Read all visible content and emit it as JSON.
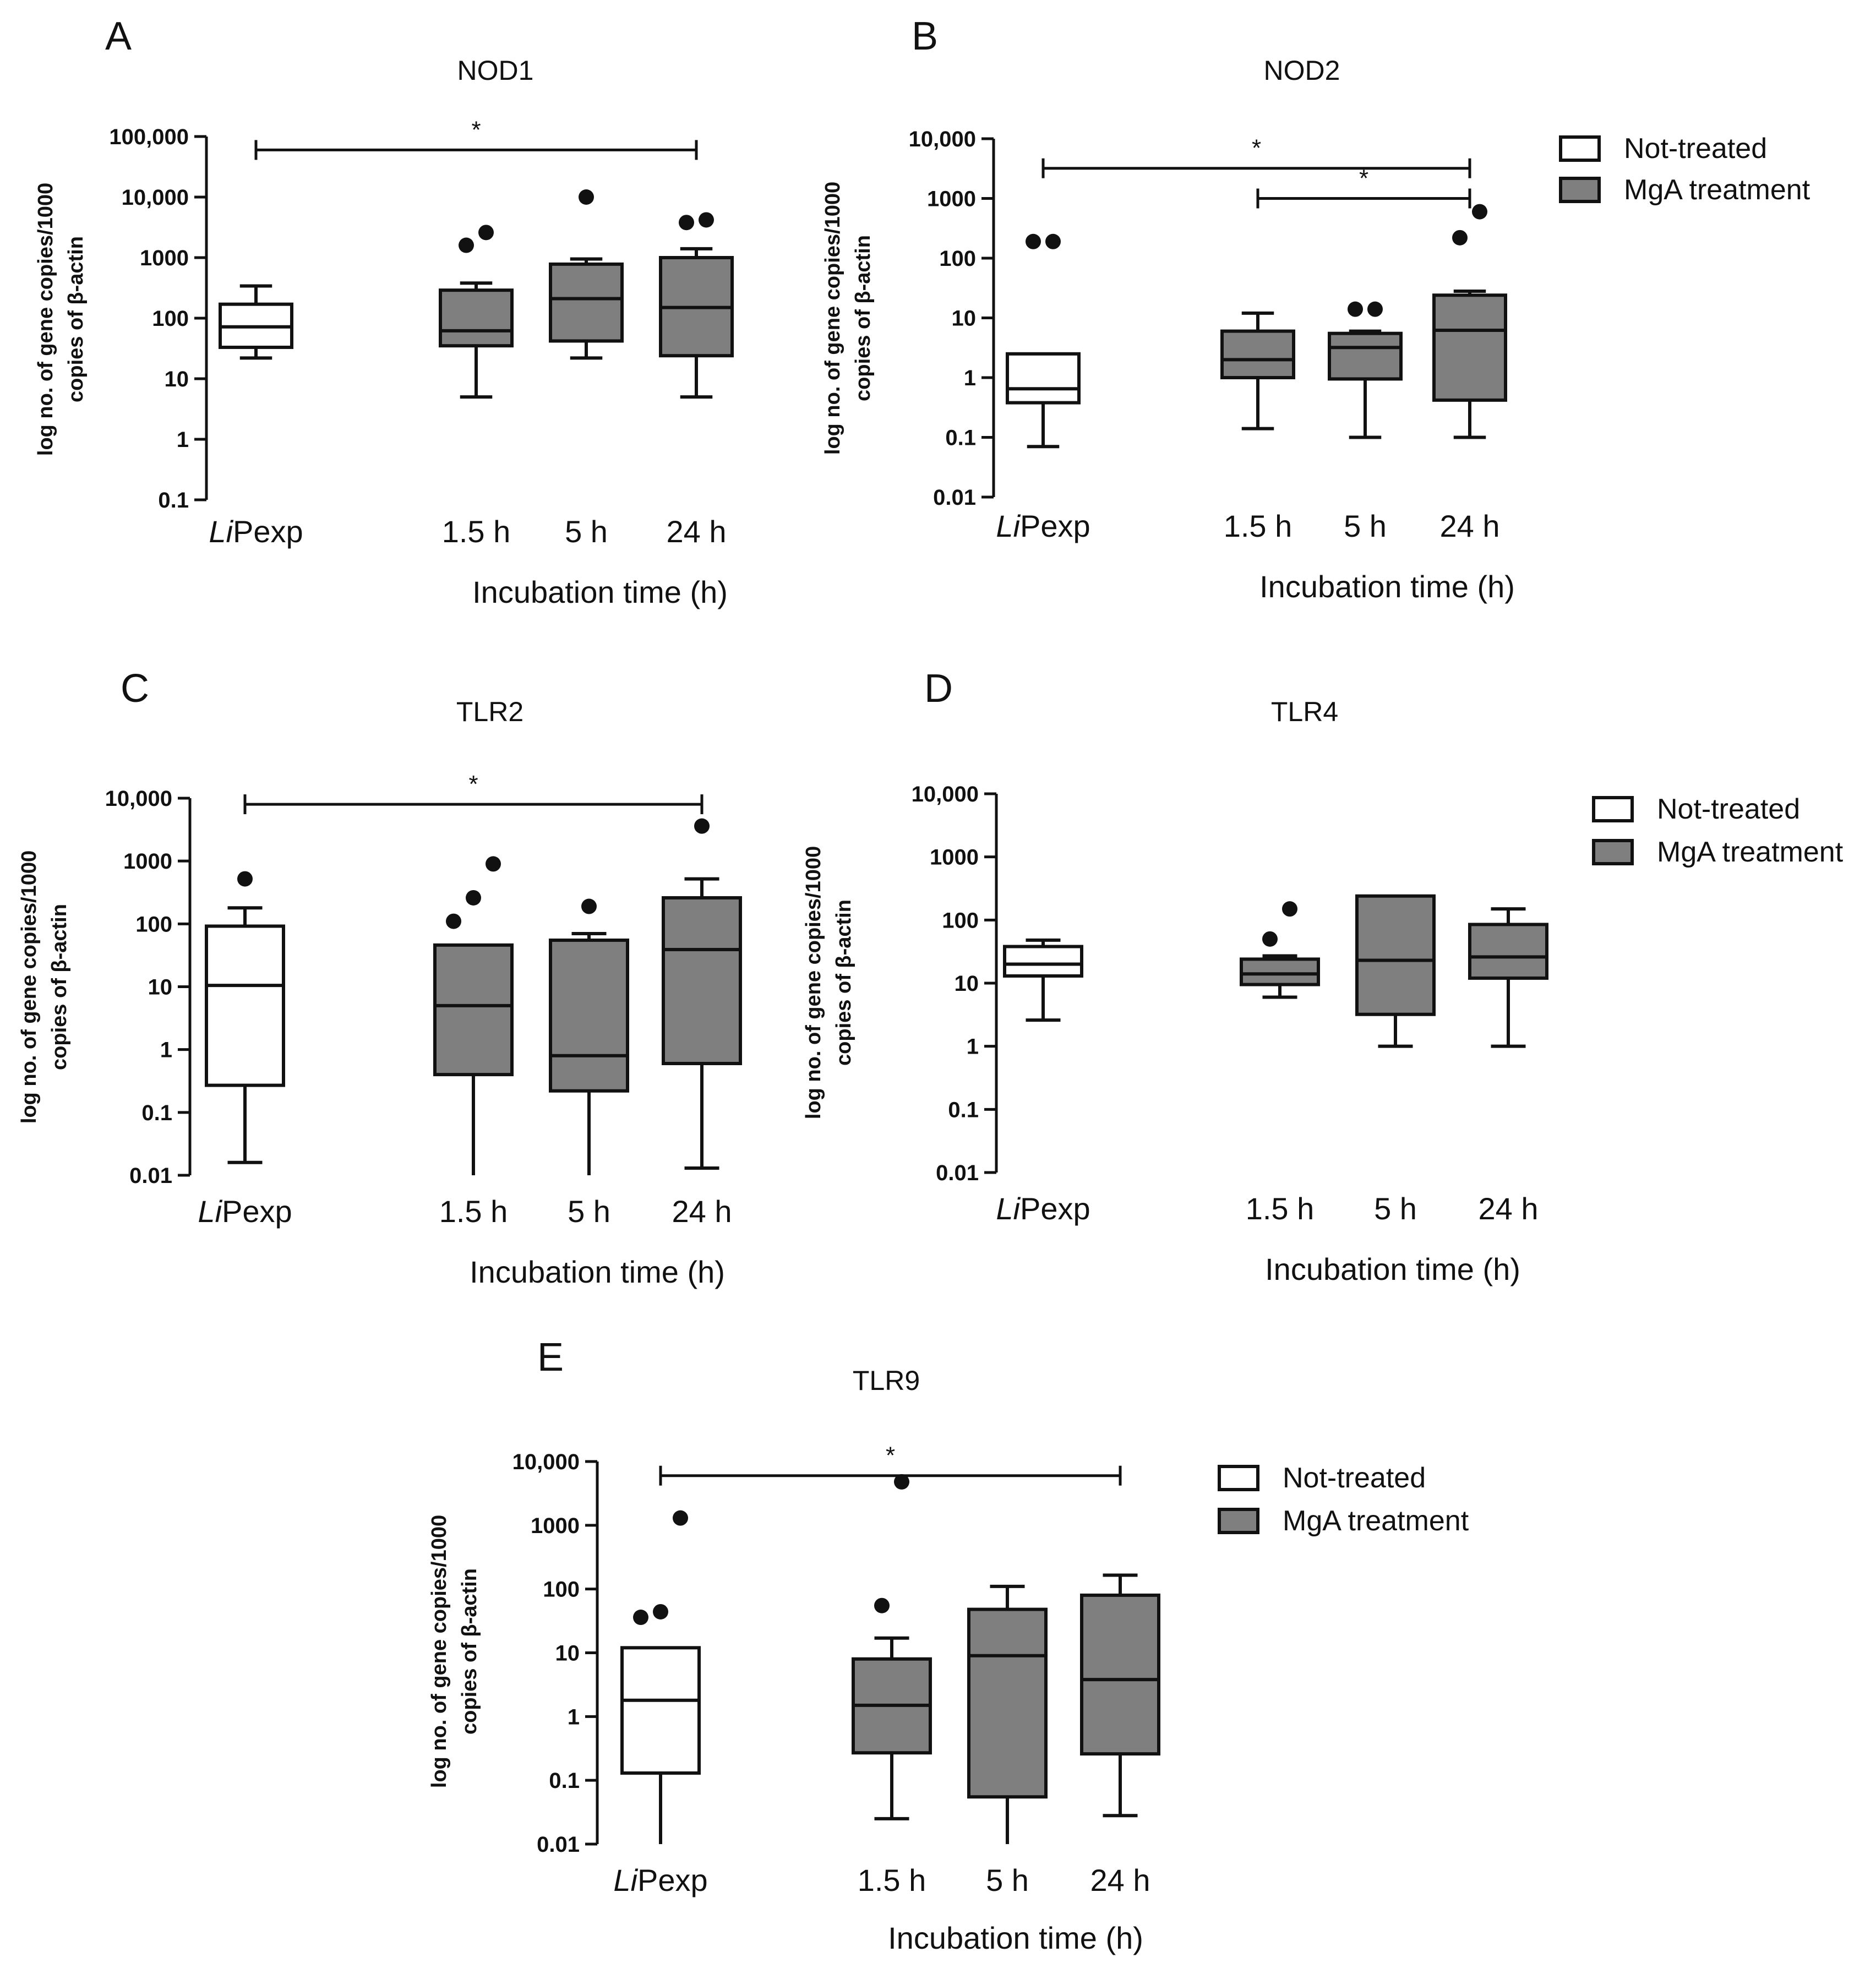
{
  "colors": {
    "not_treated": "#ffffff",
    "mga_treatment": "#7f7f7f",
    "line": "#111111"
  },
  "chart_data": [
    {
      "panel": "A",
      "title": "NOD1",
      "type": "box",
      "scale": "log",
      "ylabel_line1": "log no. of gene copies/1000",
      "ylabel_line2": "copies of β-actin",
      "xlabel": "Incubation time (h)",
      "categories": [
        {
          "label_italic": "Li",
          "label": "Pexp",
          "group": "not_treated"
        },
        {
          "label_italic": "",
          "label": "1.5 h",
          "group": "mga_treatment"
        },
        {
          "label_italic": "",
          "label": "5 h",
          "group": "mga_treatment"
        },
        {
          "label_italic": "",
          "label": "24 h",
          "group": "mga_treatment"
        }
      ],
      "ylim": [
        0.1,
        100000
      ],
      "ticks": [
        {
          "value": 0.1,
          "label": "0.1"
        },
        {
          "value": 1,
          "label": "1"
        },
        {
          "value": 10,
          "label": "10"
        },
        {
          "value": 100,
          "label": "100"
        },
        {
          "value": 1000,
          "label": "1000"
        },
        {
          "value": 10000,
          "label": "10,000"
        },
        {
          "value": 100000,
          "label": "100,000"
        }
      ],
      "boxes": [
        {
          "min": 22,
          "q1": 33,
          "median": 72,
          "q3": 170,
          "max": 340,
          "outliers": []
        },
        {
          "min": 5,
          "q1": 35,
          "median": 62,
          "q3": 290,
          "max": 380,
          "outliers": [
            1600,
            2600
          ]
        },
        {
          "min": 22,
          "q1": 42,
          "median": 210,
          "q3": 780,
          "max": 950,
          "outliers": [
            10000
          ]
        },
        {
          "min": 5,
          "q1": 24,
          "median": 150,
          "q3": 1000,
          "max": 1400,
          "outliers": [
            3800,
            4200
          ]
        }
      ],
      "significance": [
        {
          "from": 0,
          "to": 3,
          "value": 60000,
          "label": "*"
        }
      ]
    },
    {
      "panel": "B",
      "title": "NOD2",
      "type": "box",
      "scale": "log",
      "ylabel_line1": "log no. of gene copies/1000",
      "ylabel_line2": "copies of β-actin",
      "xlabel": "Incubation time (h)",
      "categories": [
        {
          "label_italic": "Li",
          "label": "Pexp",
          "group": "not_treated"
        },
        {
          "label_italic": "",
          "label": "1.5 h",
          "group": "mga_treatment"
        },
        {
          "label_italic": "",
          "label": "5 h",
          "group": "mga_treatment"
        },
        {
          "label_italic": "",
          "label": "24 h",
          "group": "mga_treatment"
        }
      ],
      "ylim": [
        0.01,
        10000
      ],
      "ticks": [
        {
          "value": 0.01,
          "label": "0.01"
        },
        {
          "value": 0.1,
          "label": "0.1"
        },
        {
          "value": 1,
          "label": "1"
        },
        {
          "value": 10,
          "label": "10"
        },
        {
          "value": 100,
          "label": "100"
        },
        {
          "value": 1000,
          "label": "1000"
        },
        {
          "value": 10000,
          "label": "10,000"
        }
      ],
      "boxes": [
        {
          "min": 0.07,
          "q1": 0.38,
          "median": 0.65,
          "q3": 2.5,
          "max": 2.5,
          "outliers": [
            190,
            190
          ]
        },
        {
          "min": 0.14,
          "q1": 1.0,
          "median": 2.0,
          "q3": 6.0,
          "max": 12,
          "outliers": []
        },
        {
          "min": 0.1,
          "q1": 0.95,
          "median": 3.2,
          "q3": 5.5,
          "max": 6.0,
          "outliers": [
            14,
            14
          ]
        },
        {
          "min": 0.1,
          "q1": 0.42,
          "median": 6.2,
          "q3": 24,
          "max": 28,
          "outliers": [
            220,
            600
          ]
        }
      ],
      "significance": [
        {
          "from": 0,
          "to": 3,
          "value": 3200,
          "label": "*"
        },
        {
          "from": 1,
          "to": 3,
          "value": 1000,
          "label": "*"
        }
      ]
    },
    {
      "panel": "C",
      "title": "TLR2",
      "type": "box",
      "scale": "log",
      "ylabel_line1": "log no. of gene copies/1000",
      "ylabel_line2": "copies of β-actin",
      "xlabel": "Incubation time (h)",
      "categories": [
        {
          "label_italic": "Li",
          "label": "Pexp",
          "group": "not_treated"
        },
        {
          "label_italic": "",
          "label": "1.5 h",
          "group": "mga_treatment"
        },
        {
          "label_italic": "",
          "label": "5 h",
          "group": "mga_treatment"
        },
        {
          "label_italic": "",
          "label": "24 h",
          "group": "mga_treatment"
        }
      ],
      "ylim": [
        0.01,
        10000
      ],
      "ticks": [
        {
          "value": 0.01,
          "label": "0.01"
        },
        {
          "value": 0.1,
          "label": "0.1"
        },
        {
          "value": 1,
          "label": "1"
        },
        {
          "value": 10,
          "label": "10"
        },
        {
          "value": 100,
          "label": "100"
        },
        {
          "value": 1000,
          "label": "1000"
        },
        {
          "value": 10000,
          "label": "10,000"
        }
      ],
      "boxes": [
        {
          "min": 0.016,
          "q1": 0.27,
          "median": 10.5,
          "q3": 92,
          "max": 180,
          "outliers": [
            520
          ]
        },
        {
          "min": 0.01,
          "q1": 0.4,
          "median": 5.0,
          "q3": 46,
          "max": 46,
          "outliers": [
            110,
            260,
            900
          ]
        },
        {
          "min": 0.01,
          "q1": 0.22,
          "median": 0.8,
          "q3": 55,
          "max": 70,
          "outliers": [
            190
          ]
        },
        {
          "min": 0.013,
          "q1": 0.6,
          "median": 39,
          "q3": 260,
          "max": 520,
          "outliers": [
            3600
          ]
        }
      ],
      "significance": [
        {
          "from": 0,
          "to": 3,
          "value": 8000,
          "label": "*"
        }
      ]
    },
    {
      "panel": "D",
      "title": "TLR4",
      "type": "box",
      "scale": "log",
      "ylabel_line1": "log no. of gene copies/1000",
      "ylabel_line2": "copies of β-actin",
      "xlabel": "Incubation time (h)",
      "categories": [
        {
          "label_italic": "Li",
          "label": "Pexp",
          "group": "not_treated"
        },
        {
          "label_italic": "",
          "label": "1.5 h",
          "group": "mga_treatment"
        },
        {
          "label_italic": "",
          "label": "5 h",
          "group": "mga_treatment"
        },
        {
          "label_italic": "",
          "label": "24 h",
          "group": "mga_treatment"
        }
      ],
      "ylim": [
        0.01,
        10000
      ],
      "ticks": [
        {
          "value": 0.01,
          "label": "0.01"
        },
        {
          "value": 0.1,
          "label": "0.1"
        },
        {
          "value": 1,
          "label": "1"
        },
        {
          "value": 10,
          "label": "10"
        },
        {
          "value": 100,
          "label": "100"
        },
        {
          "value": 1000,
          "label": "1000"
        },
        {
          "value": 10000,
          "label": "10,000"
        }
      ],
      "boxes": [
        {
          "min": 2.6,
          "q1": 13,
          "median": 20,
          "q3": 38,
          "max": 48,
          "outliers": []
        },
        {
          "min": 6.0,
          "q1": 9.5,
          "median": 14,
          "q3": 24,
          "max": 27,
          "outliers": [
            50,
            150
          ]
        },
        {
          "min": 1.0,
          "q1": 3.2,
          "median": 23,
          "q3": 240,
          "max": 240,
          "outliers": []
        },
        {
          "min": 1.0,
          "q1": 12,
          "median": 26,
          "q3": 85,
          "max": 150,
          "outliers": []
        }
      ],
      "significance": []
    },
    {
      "panel": "E",
      "title": "TLR9",
      "type": "box",
      "scale": "log",
      "ylabel_line1": "log no. of gene copies/1000",
      "ylabel_line2": "copies of β-actin",
      "xlabel": "Incubation time (h)",
      "categories": [
        {
          "label_italic": "Li",
          "label": "Pexp",
          "group": "not_treated"
        },
        {
          "label_italic": "",
          "label": "1.5 h",
          "group": "mga_treatment"
        },
        {
          "label_italic": "",
          "label": "5 h",
          "group": "mga_treatment"
        },
        {
          "label_italic": "",
          "label": "24 h",
          "group": "mga_treatment"
        }
      ],
      "ylim": [
        0.01,
        10000
      ],
      "ticks": [
        {
          "value": 0.01,
          "label": "0.01"
        },
        {
          "value": 0.1,
          "label": "0.1"
        },
        {
          "value": 1,
          "label": "1"
        },
        {
          "value": 10,
          "label": "10"
        },
        {
          "value": 100,
          "label": "100"
        },
        {
          "value": 1000,
          "label": "1000"
        },
        {
          "value": 10000,
          "label": "10,000"
        }
      ],
      "boxes": [
        {
          "min": 0.01,
          "q1": 0.13,
          "median": 1.8,
          "q3": 12,
          "max": 12,
          "outliers": [
            36,
            44,
            1300
          ]
        },
        {
          "min": 0.025,
          "q1": 0.27,
          "median": 1.5,
          "q3": 8.0,
          "max": 17,
          "outliers": [
            55,
            4800
          ]
        },
        {
          "min": 0.01,
          "q1": 0.055,
          "median": 9.0,
          "q3": 48,
          "max": 110,
          "outliers": []
        },
        {
          "min": 0.028,
          "q1": 0.26,
          "median": 3.8,
          "q3": 80,
          "max": 165,
          "outliers": []
        }
      ],
      "significance": [
        {
          "from": 0,
          "to": 3,
          "value": 6000,
          "label": "*"
        }
      ]
    }
  ],
  "legends": [
    {
      "entries": [
        {
          "label": "Not-treated",
          "group": "not_treated"
        },
        {
          "label": "MgA treatment",
          "group": "mga_treatment"
        }
      ]
    },
    {
      "entries": [
        {
          "label": "Not-treated",
          "group": "not_treated"
        },
        {
          "label": "MgA treatment",
          "group": "mga_treatment"
        }
      ]
    },
    {
      "entries": [
        {
          "label": "Not-treated",
          "group": "not_treated"
        },
        {
          "label": "MgA treatment",
          "group": "mga_treatment"
        }
      ]
    }
  ]
}
